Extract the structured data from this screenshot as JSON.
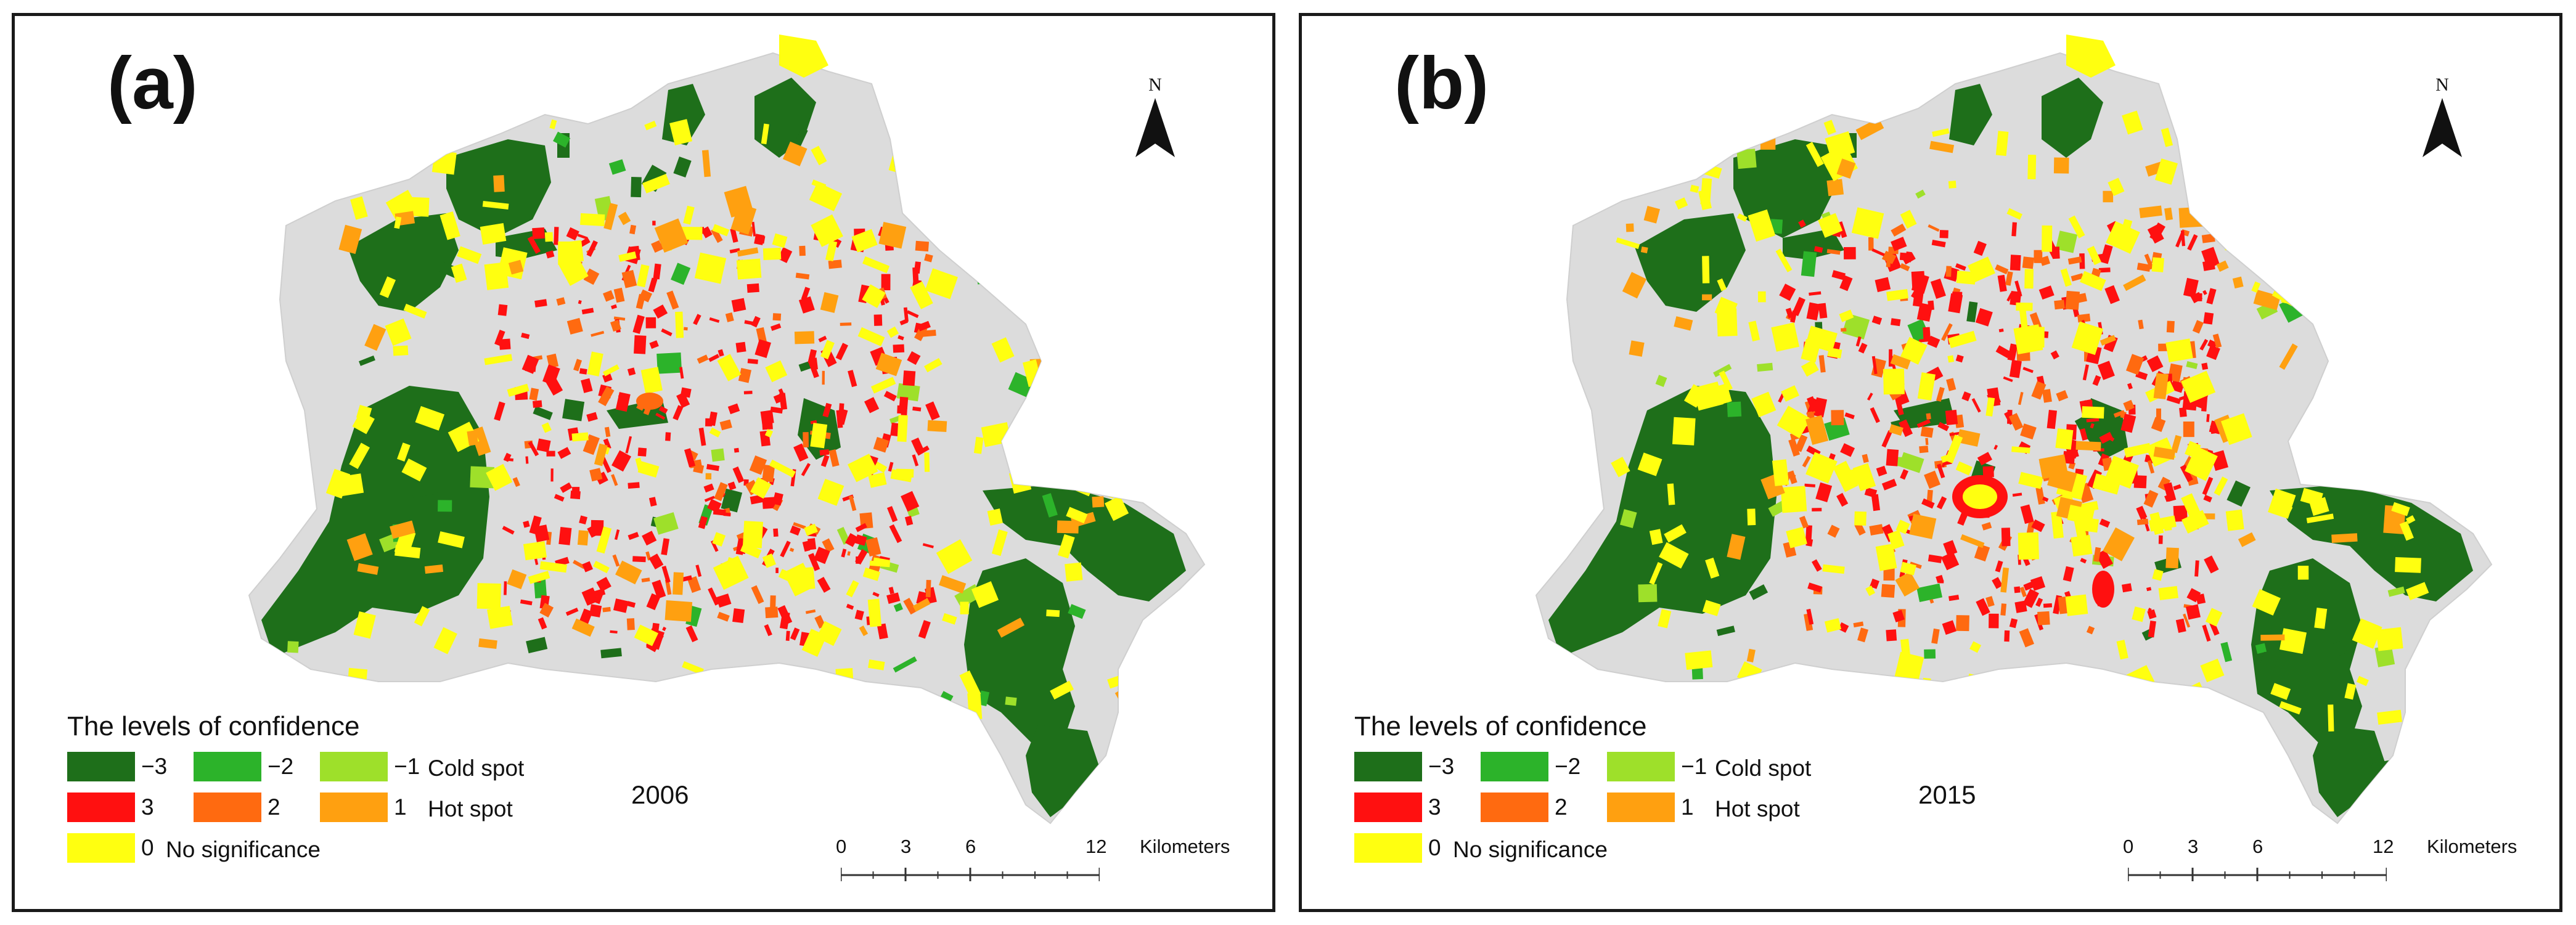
{
  "panels": [
    {
      "label": "(a)",
      "year": "2006",
      "north": "N",
      "legend": {
        "title": "The levels of confidence",
        "items": [
          {
            "value": "−3",
            "color": "#1e6f1a"
          },
          {
            "value": "−2",
            "color": "#2cb32a"
          },
          {
            "value": "−1",
            "color": "#9ee02a"
          },
          {
            "value": "3",
            "color": "#ff1010"
          },
          {
            "value": "2",
            "color": "#ff6a10"
          },
          {
            "value": "1",
            "color": "#ffa010"
          },
          {
            "value": "0",
            "color": "#ffff10"
          }
        ],
        "cold_label": "Cold spot",
        "hot_label": "Hot spot",
        "none_label": "No significance"
      },
      "scale": {
        "ticks": [
          "0",
          "3",
          "6",
          "12"
        ],
        "units": "Kilometers"
      }
    },
    {
      "label": "(b)",
      "year": "2015",
      "north": "N",
      "legend": {
        "title": "The levels of confidence",
        "items": [
          {
            "value": "−3",
            "color": "#1e6f1a"
          },
          {
            "value": "−2",
            "color": "#2cb32a"
          },
          {
            "value": "−1",
            "color": "#9ee02a"
          },
          {
            "value": "3",
            "color": "#ff1010"
          },
          {
            "value": "2",
            "color": "#ff6a10"
          },
          {
            "value": "1",
            "color": "#ffa010"
          },
          {
            "value": "0",
            "color": "#ffff10"
          }
        ],
        "cold_label": "Cold spot",
        "hot_label": "Hot spot",
        "none_label": "No significance"
      },
      "scale": {
        "ticks": [
          "0",
          "3",
          "6",
          "12"
        ],
        "units": "Kilometers"
      }
    }
  ],
  "colors": {
    "background_area": "#dcdcdc",
    "cold_3": "#1e6f1a",
    "cold_2": "#2cb32a",
    "cold_1": "#9ee02a",
    "hot_3": "#ff1010",
    "hot_2": "#ff6a10",
    "hot_1": "#ffa010",
    "none": "#ffff10"
  }
}
